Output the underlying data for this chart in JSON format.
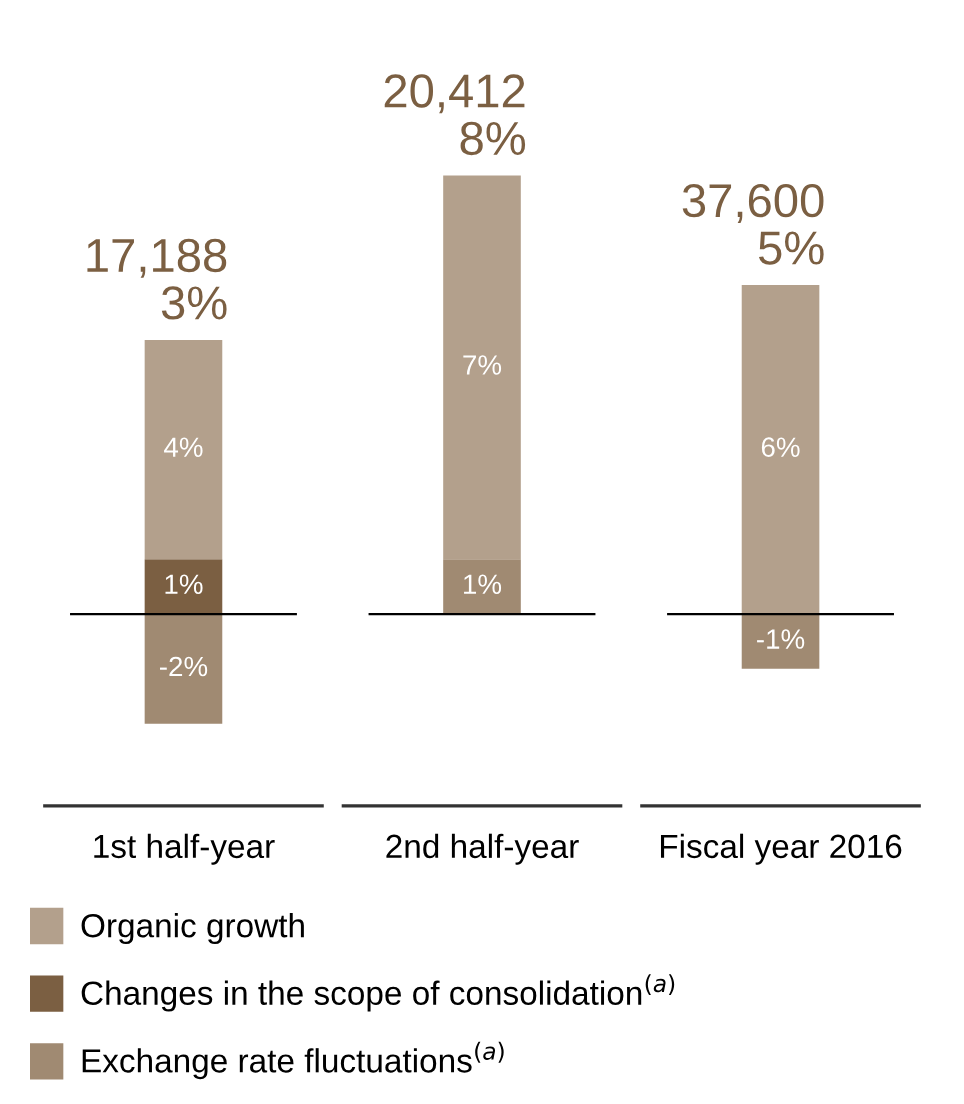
{
  "chart_data": {
    "type": "bar",
    "stacked": true,
    "legend": "bottom",
    "categories": [
      "1st half-year",
      "2nd half-year",
      "Fiscal year 2016"
    ],
    "series": [
      {
        "name": "Exchange rate fluctuations$^{(a)}$",
        "color": "#a08a72",
        "values": [
          -2,
          1,
          -1
        ],
        "value_labels": [
          "-2%",
          "1%",
          "-1%"
        ]
      },
      {
        "name": "Changes in the scope of consolidation$^{(a)}$",
        "color": "#7b5f42",
        "values": [
          1,
          null,
          null
        ],
        "value_labels": [
          "1%",
          null,
          null
        ]
      },
      {
        "name": "Organic growth",
        "color": "#b3a08c",
        "values": [
          4,
          7,
          6
        ],
        "value_labels": [
          "4%",
          "7%",
          "6%"
        ]
      }
    ],
    "ref_lines": [
      {
        "axis": "y",
        "value": 0,
        "label": null,
        "color": "#000000"
      }
    ],
    "totals": [
      "17,188\n3%",
      "20,412\n8%",
      "37,600\n5%"
    ]
  }
}
